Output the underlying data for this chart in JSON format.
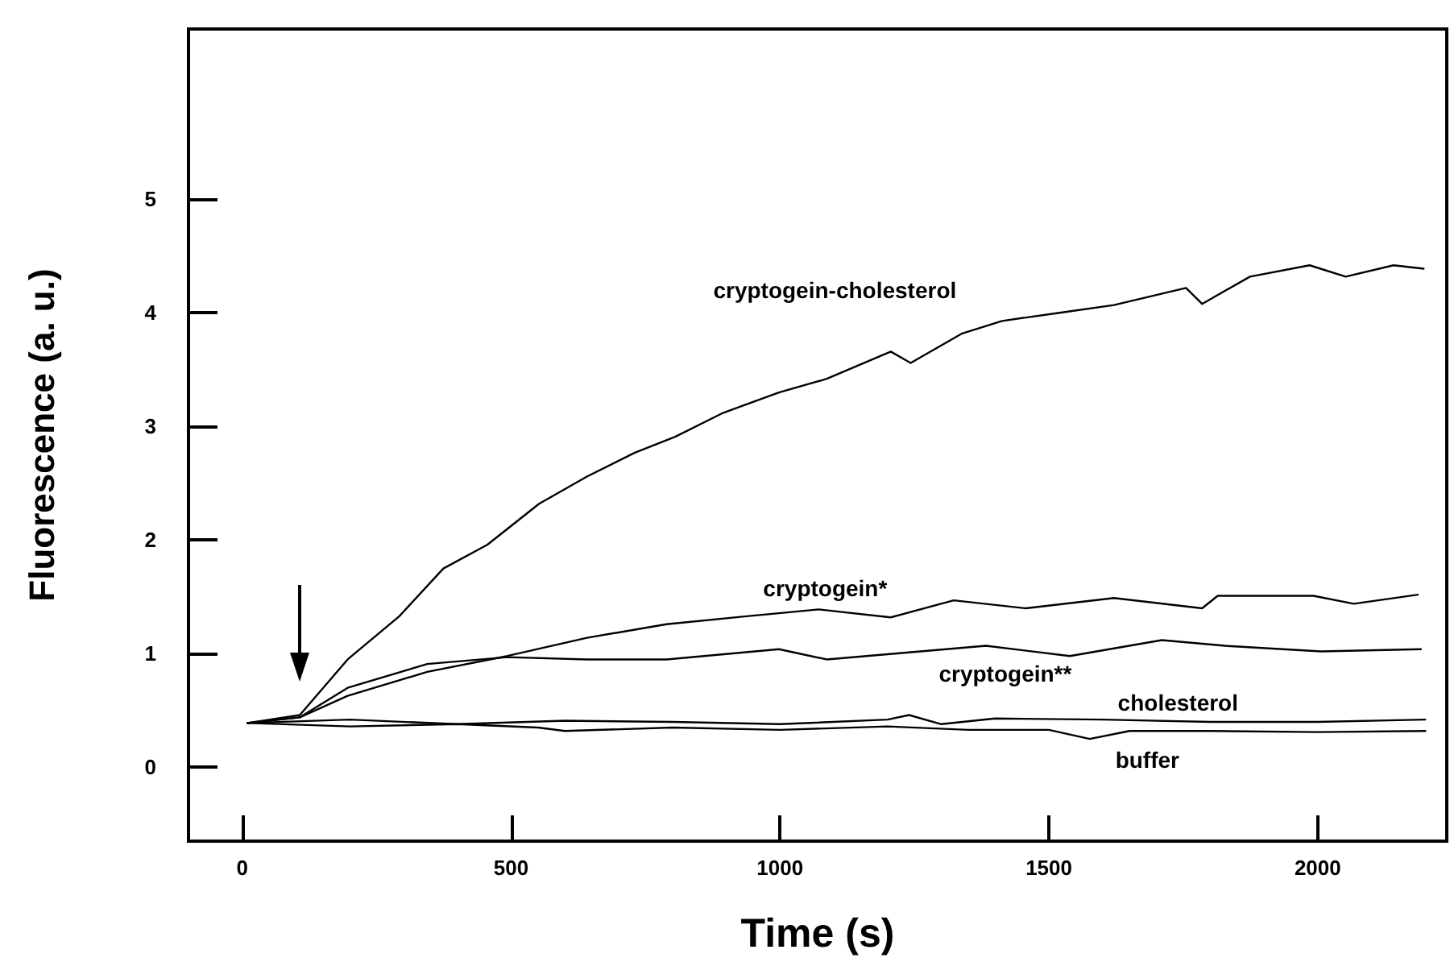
{
  "chart_data": {
    "type": "line",
    "xlabel": "Time (s)",
    "ylabel": "Fluorescence (a. u.)",
    "xlim": [
      -100,
      2240
    ],
    "xticks": [
      0,
      500,
      1000,
      1500,
      2000
    ],
    "ylim": [
      -0.65,
      6.5
    ],
    "yticks": [
      0,
      1,
      2,
      3,
      4,
      5
    ],
    "grid": false,
    "legend": false,
    "marker": "none",
    "line_style": "solid",
    "series": [
      {
        "name": "cryptogein-cholesterol",
        "color": "#000000",
        "x": [
          10,
          107,
          196,
          292,
          374,
          456,
          552,
          641,
          730,
          805,
          894,
          998,
          1087,
          1206,
          1243,
          1339,
          1413,
          1517,
          1621,
          1755,
          1785,
          1874,
          1985,
          2052,
          2141,
          2197
        ],
        "values": [
          0.39,
          0.46,
          0.95,
          1.33,
          1.75,
          1.96,
          2.32,
          2.56,
          2.77,
          2.91,
          3.12,
          3.3,
          3.42,
          3.66,
          3.56,
          3.82,
          3.93,
          4.0,
          4.07,
          4.22,
          4.08,
          4.32,
          4.42,
          4.32,
          4.42,
          4.39
        ]
      },
      {
        "name": "cryptogein*",
        "color": "#000000",
        "x": [
          10,
          107,
          196,
          344,
          493,
          641,
          789,
          938,
          1072,
          1206,
          1323,
          1457,
          1621,
          1785,
          1814,
          1992,
          2067,
          2186
        ],
        "values": [
          0.39,
          0.44,
          0.63,
          0.84,
          0.98,
          1.14,
          1.26,
          1.33,
          1.39,
          1.32,
          1.47,
          1.4,
          1.49,
          1.4,
          1.51,
          1.51,
          1.44,
          1.52
        ]
      },
      {
        "name": "cryptogein**",
        "color": "#000000",
        "x": [
          10,
          107,
          196,
          344,
          493,
          641,
          789,
          998,
          1087,
          1383,
          1539,
          1710,
          1828,
          2006,
          2192
        ],
        "values": [
          0.39,
          0.44,
          0.7,
          0.91,
          0.97,
          0.95,
          0.95,
          1.04,
          0.95,
          1.07,
          0.98,
          1.12,
          1.07,
          1.02,
          1.04
        ]
      },
      {
        "name": "cholesterol",
        "color": "#000000",
        "x": [
          10,
          200,
          400,
          600,
          800,
          1000,
          1200,
          1240,
          1300,
          1400,
          1600,
          1800,
          2000,
          2200
        ],
        "values": [
          0.39,
          0.42,
          0.38,
          0.41,
          0.4,
          0.38,
          0.42,
          0.46,
          0.38,
          0.43,
          0.42,
          0.4,
          0.4,
          0.42
        ]
      },
      {
        "name": "buffer",
        "color": "#000000",
        "x": [
          10,
          200,
          400,
          550,
          600,
          800,
          1000,
          1200,
          1350,
          1500,
          1576,
          1650,
          1800,
          2000,
          2200
        ],
        "values": [
          0.39,
          0.36,
          0.38,
          0.35,
          0.32,
          0.35,
          0.33,
          0.36,
          0.33,
          0.33,
          0.25,
          0.32,
          0.32,
          0.31,
          0.32
        ]
      }
    ]
  }
}
